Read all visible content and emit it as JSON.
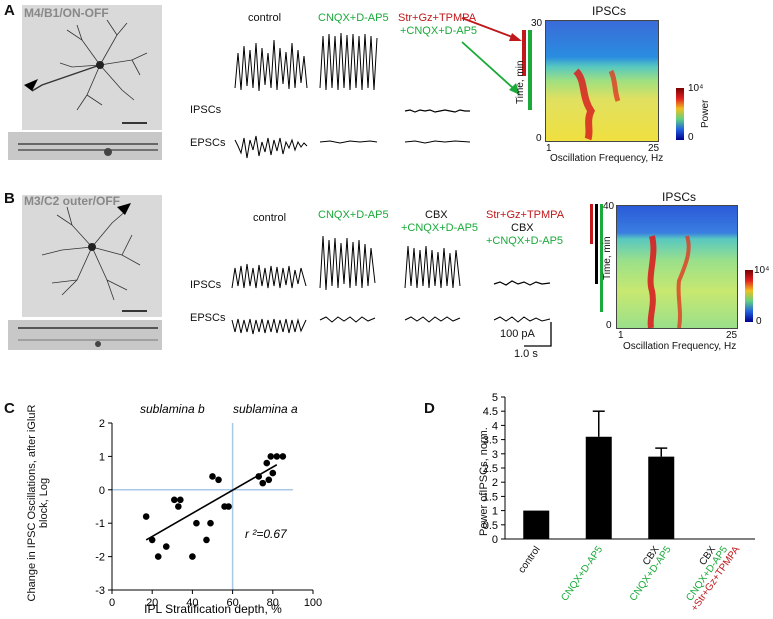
{
  "colors": {
    "green": "#1aaa3a",
    "red": "#c0181b",
    "ref": "#a8c8e8"
  },
  "panelA": {
    "letter": "A",
    "cell_label": "M4/B1/ON-OFF",
    "conditions": [
      "control",
      "CNQX+D-AP5"
    ],
    "drug_cond_line1": "Str+Gz+TPMPA",
    "drug_cond_line2": "+CNQX+D-AP5",
    "row_ipsc": "IPSCs",
    "row_epsc": "EPSCs",
    "spect_title": "IPSCs",
    "y_axis_label": "Time, min",
    "y_ticks": [
      "30",
      "0"
    ],
    "x_axis_label": "Oscillation Frequency, Hz",
    "x_ticks": [
      "1",
      "25"
    ],
    "cbar_label": "Power",
    "cbar_max": "10⁴",
    "cbar_min": "0"
  },
  "panelB": {
    "letter": "B",
    "cell_label": "M3/C2 outer/OFF",
    "cond_control": "control",
    "cond_cnqx": "CNQX+D-AP5",
    "cond_cbx_line1": "CBX",
    "cond_cbx_line2": "+CNQX+D-AP5",
    "cond_drug_line1": "Str+Gz+TPMPA",
    "cond_drug_line2": "CBX",
    "cond_drug_line3": "+CNQX+D-AP5",
    "row_ipsc": "IPSCs",
    "row_epsc": "EPSCs",
    "scale_amp": "100 pA",
    "scale_time": "1.0 s",
    "spect_title": "IPSCs",
    "y_axis_label": "Time, min",
    "y_ticks": [
      "40",
      "0"
    ],
    "x_axis_label": "Oscillation Frequency, Hz",
    "x_ticks": [
      "1",
      "25"
    ],
    "cbar_max": "10⁴",
    "cbar_min": "0"
  },
  "panelC": {
    "letter": "C",
    "note_b": "sublamina b",
    "note_a": "sublamina a",
    "r2": "r ²=0.67"
  },
  "panelD": {
    "letter": "D"
  },
  "chart_data": [
    {
      "type": "scatter",
      "title": "",
      "xlabel": "IPL Stratification depth, %",
      "ylabel": "Change in IPSC Oscillations, after iGluR block, Log",
      "xlim": [
        0,
        100
      ],
      "ylim": [
        -3,
        2
      ],
      "x_ticks": [
        0,
        20,
        40,
        60,
        80,
        100
      ],
      "y_ticks": [
        -3,
        -2,
        -1,
        0,
        1,
        2
      ],
      "reference_lines": {
        "x": 60,
        "y": 0
      },
      "fit_line": {
        "x": [
          17,
          82
        ],
        "y": [
          -1.5,
          0.75
        ]
      },
      "points": [
        [
          17,
          -0.8
        ],
        [
          20,
          -1.5
        ],
        [
          23,
          -2.0
        ],
        [
          27,
          -1.7
        ],
        [
          31,
          -0.3
        ],
        [
          33,
          -0.5
        ],
        [
          34,
          -0.3
        ],
        [
          40,
          -2.0
        ],
        [
          42,
          -1.0
        ],
        [
          47,
          -1.5
        ],
        [
          49,
          -1.0
        ],
        [
          50,
          0.4
        ],
        [
          53,
          0.3
        ],
        [
          56,
          -0.5
        ],
        [
          58,
          -0.5
        ],
        [
          73,
          0.4
        ],
        [
          75,
          0.2
        ],
        [
          77,
          0.8
        ],
        [
          78,
          0.3
        ],
        [
          79,
          1.0
        ],
        [
          80,
          0.5
        ],
        [
          82,
          1.0
        ],
        [
          85,
          1.0
        ]
      ]
    },
    {
      "type": "bar",
      "title": "",
      "xlabel": "",
      "ylabel": "Power ofIPSCs, norm.",
      "ylim": [
        0,
        5
      ],
      "y_ticks": [
        0,
        0.5,
        1,
        1.5,
        2,
        2.5,
        3,
        3.5,
        4,
        4.5,
        5
      ],
      "categories": [
        "control",
        "CNQX+D-AP5",
        "CBX CNQX+D-AP5",
        "CBX CNQX+D-AP5 +Str+Gz+TPMPA"
      ],
      "values": [
        1.0,
        3.6,
        2.9,
        0.0
      ],
      "errors": [
        0,
        0.9,
        0.3,
        0
      ],
      "tick_labels": [
        [
          {
            "text": "control",
            "color": "black"
          }
        ],
        [
          {
            "text": "CNQX+D-AP5",
            "color": "green"
          }
        ],
        [
          {
            "text": "CBX",
            "color": "black"
          },
          {
            "text": "CNQX+D-AP5",
            "color": "green"
          }
        ],
        [
          {
            "text": "CBX",
            "color": "black"
          },
          {
            "text": "CNQX+D-AP5",
            "color": "green"
          },
          {
            "text": "+Str+Gz+TPMPA",
            "color": "red"
          }
        ]
      ]
    }
  ]
}
